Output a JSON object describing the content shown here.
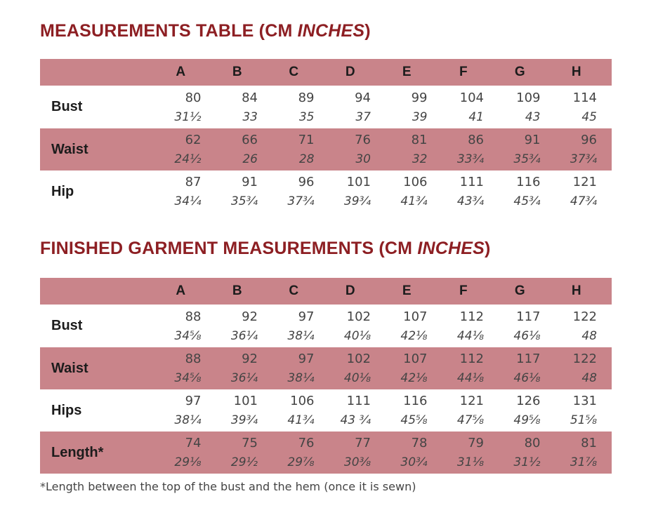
{
  "tables": [
    {
      "title_main": "MEASUREMENTS TABLE (CM ",
      "title_italic": "INCHES",
      "title_end": ")",
      "sizes": [
        "A",
        "B",
        "C",
        "D",
        "E",
        "F",
        "G",
        "H"
      ],
      "rows": [
        {
          "label": "Bust",
          "cm": [
            "80",
            "84",
            "89",
            "94",
            "99",
            "104",
            "109",
            "114"
          ],
          "inches": [
            "31½",
            "33",
            "35",
            "37",
            "39",
            "41",
            "43",
            "45"
          ]
        },
        {
          "label": "Waist",
          "cm": [
            "62",
            "66",
            "71",
            "76",
            "81",
            "86",
            "91",
            "96"
          ],
          "inches": [
            "24½",
            "26",
            "28",
            "30",
            "32",
            "33¾",
            "35¾",
            "37¾"
          ]
        },
        {
          "label": "Hip",
          "cm": [
            "87",
            "91",
            "96",
            "101",
            "106",
            "111",
            "116",
            "121"
          ],
          "inches": [
            "34¼",
            "35¾",
            "37¾",
            "39¾",
            "41¾",
            "43¾",
            "45¾",
            "47¾"
          ]
        }
      ]
    },
    {
      "title_main": "FINISHED GARMENT MEASUREMENTS (CM ",
      "title_italic": "INCHES",
      "title_end": ")",
      "sizes": [
        "A",
        "B",
        "C",
        "D",
        "E",
        "F",
        "G",
        "H"
      ],
      "rows": [
        {
          "label": "Bust",
          "cm": [
            "88",
            "92",
            "97",
            "102",
            "107",
            "112",
            "117",
            "122"
          ],
          "inches": [
            "34⅝",
            "36¼",
            "38¼",
            "40⅛",
            "42⅛",
            "44⅛",
            "46⅛",
            "48"
          ]
        },
        {
          "label": "Waist",
          "cm": [
            "88",
            "92",
            "97",
            "102",
            "107",
            "112",
            "117",
            "122"
          ],
          "inches": [
            "34⅝",
            "36¼",
            "38¼",
            "40⅛",
            "42⅛",
            "44⅛",
            "46⅛",
            "48"
          ]
        },
        {
          "label": "Hips",
          "cm": [
            "97",
            "101",
            "106",
            "111",
            "116",
            "121",
            "126",
            "131"
          ],
          "inches": [
            "38¼",
            "39¾",
            "41¾",
            "43 ¾",
            "45⅝",
            "47⅝",
            "49⅝",
            "51⅝"
          ]
        },
        {
          "label": "Length*",
          "cm": [
            "74",
            "75",
            "76",
            "77",
            "78",
            "79",
            "80",
            "81"
          ],
          "inches": [
            "29⅛",
            "29½",
            "29⅞",
            "30⅜",
            "30¾",
            "31⅛",
            "31½",
            "31⅞"
          ]
        }
      ]
    }
  ],
  "footnote": "*Length between the top of the bust and the hem (once it is sewn)",
  "colors": {
    "title": "#8d1f23",
    "row_shade": "#c9848a",
    "text": "#444444"
  }
}
